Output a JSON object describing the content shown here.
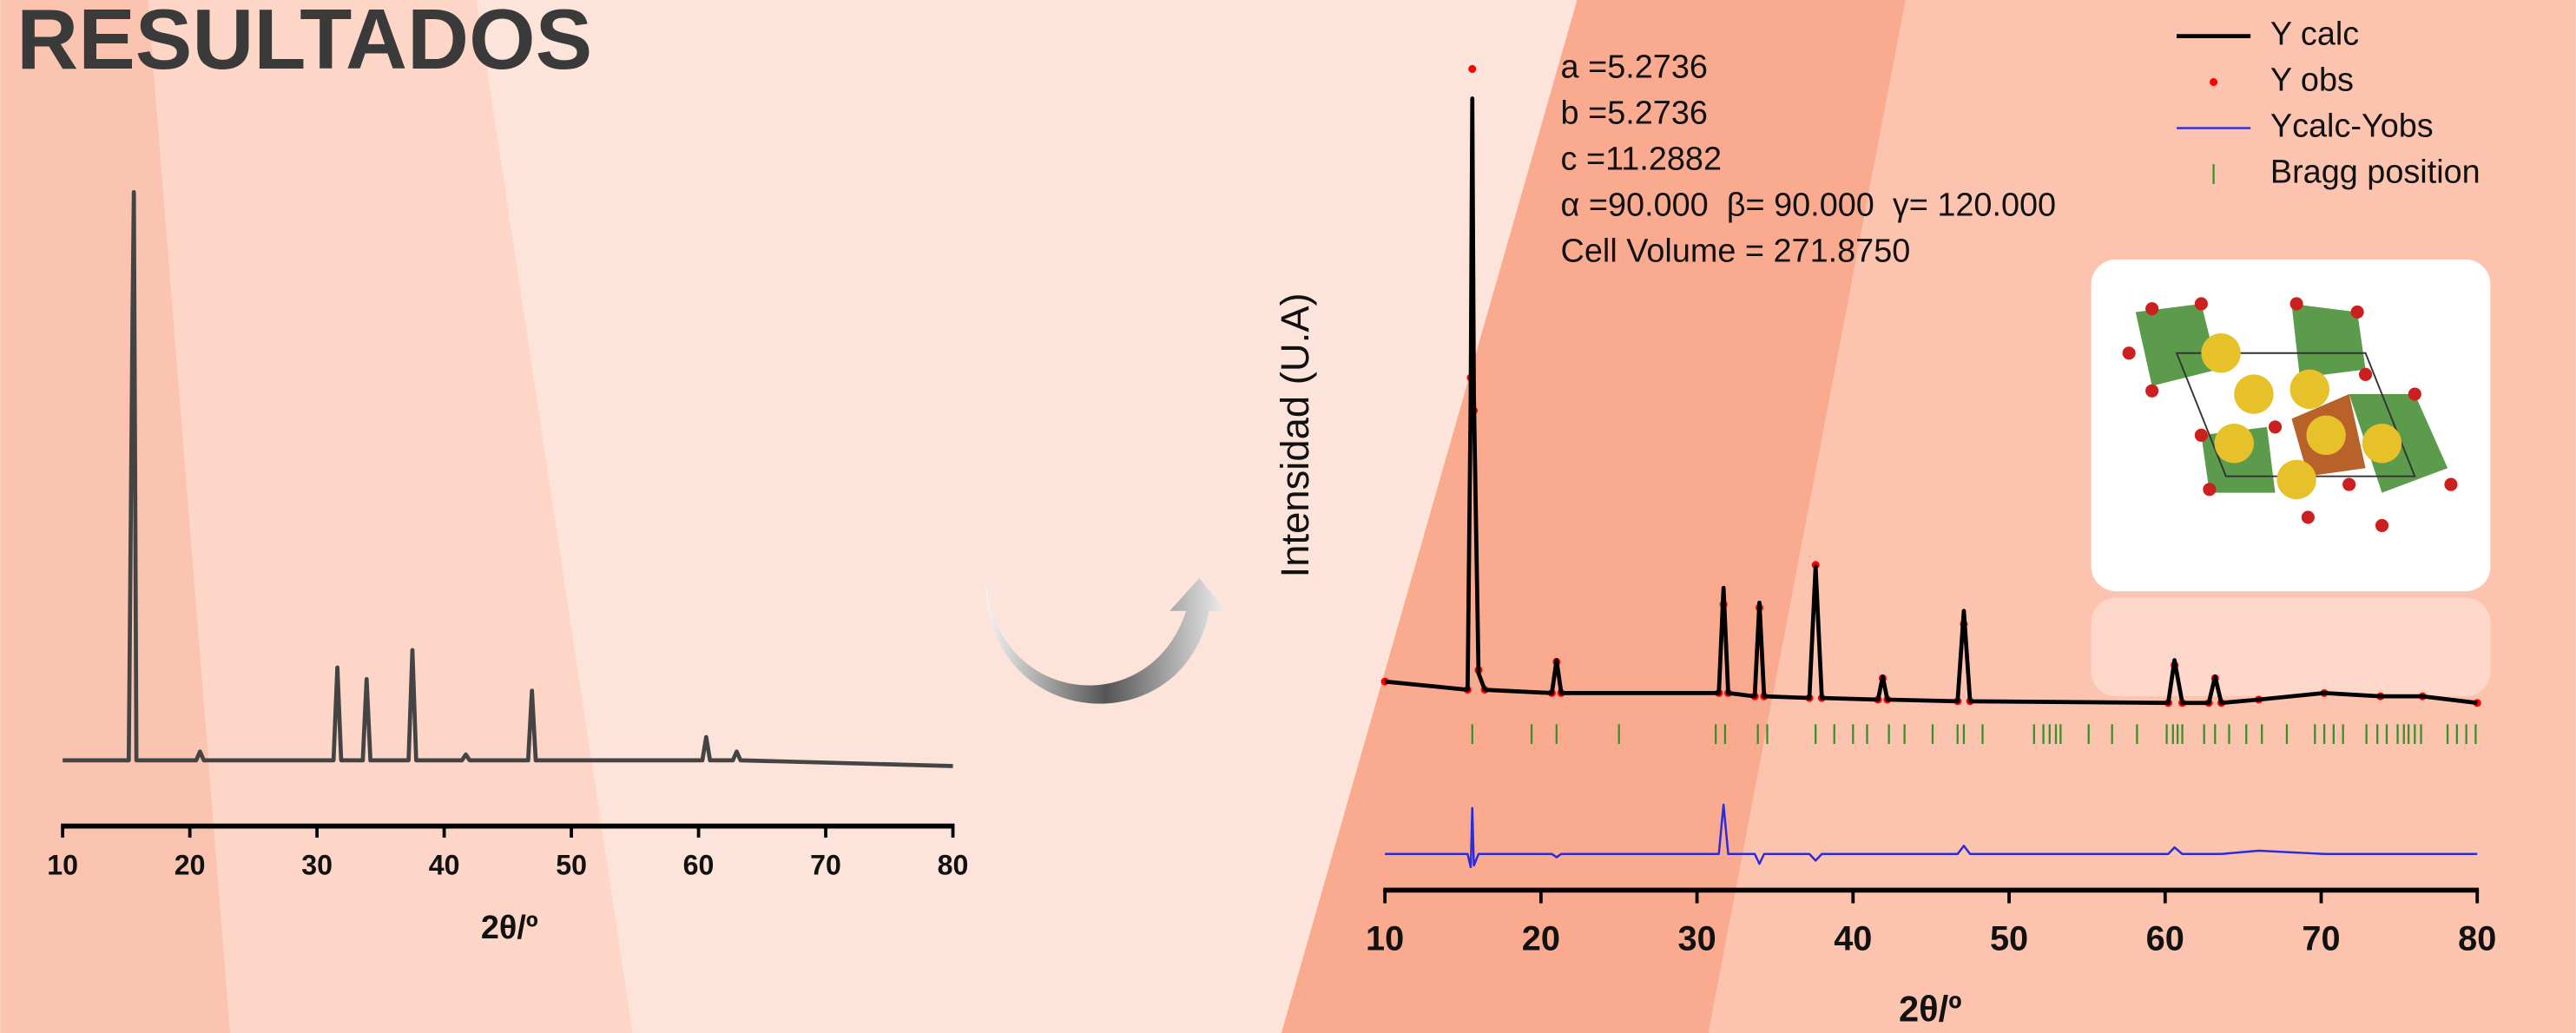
{
  "title": "RESULTADOS",
  "chart_data": [
    {
      "type": "line",
      "xlabel": "2θ/º",
      "x": [
        10,
        15.2,
        15.5,
        15.6,
        15.8,
        16.1,
        20.5,
        20.8,
        21.1,
        31.3,
        31.6,
        31.9,
        33.6,
        33.9,
        34.2,
        37.2,
        37.5,
        37.8,
        41.4,
        41.7,
        42,
        46.6,
        46.9,
        47.2,
        60.3,
        60.6,
        60.9,
        62.7,
        63,
        63.3,
        80
      ],
      "series": [
        {
          "color": "#444444",
          "style": "line",
          "values": [
            2,
            2,
            80,
            100,
            2,
            2,
            2,
            3.5,
            2,
            2,
            18,
            2,
            2,
            16,
            2,
            2,
            21,
            2,
            2,
            3,
            2,
            2,
            14,
            2,
            2,
            6,
            2,
            2,
            3.5,
            2,
            1
          ]
        }
      ],
      "xlim": [
        10,
        80
      ],
      "xticks": [
        10,
        20,
        30,
        40,
        50,
        60,
        70,
        80
      ],
      "ylim": [
        0,
        100
      ]
    },
    {
      "type": "line",
      "xlabel": "2θ/º",
      "ylabel": "Intensidad (U.A)",
      "annotations": [
        "a =5.2736",
        "b =5.2736",
        "c =11.2882",
        "α =90.000  β= 90.000  γ= 120.000",
        "Cell Volume = 271.8750"
      ],
      "x": [
        10,
        15.3,
        15.5,
        15.6,
        15.7,
        16.0,
        16.4,
        20.7,
        21,
        21.3,
        31.4,
        31.7,
        32.0,
        33.7,
        34.0,
        34.3,
        37.2,
        37.6,
        38.0,
        41.6,
        41.9,
        42.2,
        46.7,
        47.1,
        47.5,
        60.2,
        60.6,
        61.1,
        62.8,
        63.2,
        63.6,
        66.0,
        70.2,
        73.8,
        76.5,
        80
      ],
      "series": [
        {
          "name": "Y calc",
          "color": "#000000",
          "style": "line",
          "values": [
            125,
            120,
            300,
            480,
            300,
            130,
            120,
            118,
            138,
            118,
            118,
            182,
            118,
            116,
            173,
            116,
            115,
            195,
            115,
            114,
            128,
            114,
            113,
            168,
            113,
            112,
            138,
            112,
            112,
            128,
            112,
            114,
            118,
            116,
            116,
            112
          ]
        },
        {
          "name": "Y obs",
          "color": "#ff0000",
          "style": "dots",
          "values": [
            125,
            120,
            310,
            498,
            290,
            132,
            120,
            118,
            137,
            118,
            118,
            172,
            118,
            116,
            170,
            116,
            115,
            196,
            115,
            114,
            127,
            114,
            113,
            160,
            113,
            112,
            135,
            112,
            112,
            127,
            112,
            114,
            118,
            116,
            116,
            112
          ]
        },
        {
          "name": "Ycalc-Yobs",
          "color": "#2a2ae0",
          "style": "line",
          "values": [
            20,
            20,
            12,
            48,
            13,
            20,
            20,
            20,
            18,
            20,
            20,
            50,
            20,
            20,
            14,
            20,
            20,
            16,
            20,
            20,
            20,
            20,
            20,
            25,
            20,
            20,
            24,
            20,
            20,
            20,
            20,
            22,
            20,
            20,
            20,
            20
          ]
        }
      ],
      "bragg": {
        "name": "Bragg position",
        "color": "#3a8f2a",
        "x": [
          15.6,
          19.4,
          21,
          25,
          31.2,
          31.8,
          33.9,
          34.5,
          37.6,
          38.8,
          40,
          40.9,
          42.3,
          43.3,
          45.1,
          46.7,
          47.1,
          48.3,
          51.6,
          52.2,
          52.6,
          53,
          53.3,
          55.1,
          56.6,
          58.2,
          60.1,
          60.5,
          60.8,
          61.1,
          62.5,
          63.2,
          64.1,
          65.2,
          66.2,
          67.8,
          69.6,
          70.2,
          70.8,
          71.4,
          72.9,
          73.6,
          74.2,
          74.9,
          75.3,
          75.6,
          76,
          76.4,
          78.1,
          78.7,
          79.3,
          79.9
        ]
      },
      "xlim": [
        10,
        80
      ],
      "xticks": [
        10,
        20,
        30,
        40,
        50,
        60,
        70,
        80
      ],
      "ylim": [
        0,
        520
      ],
      "legend": "top-right"
    }
  ]
}
